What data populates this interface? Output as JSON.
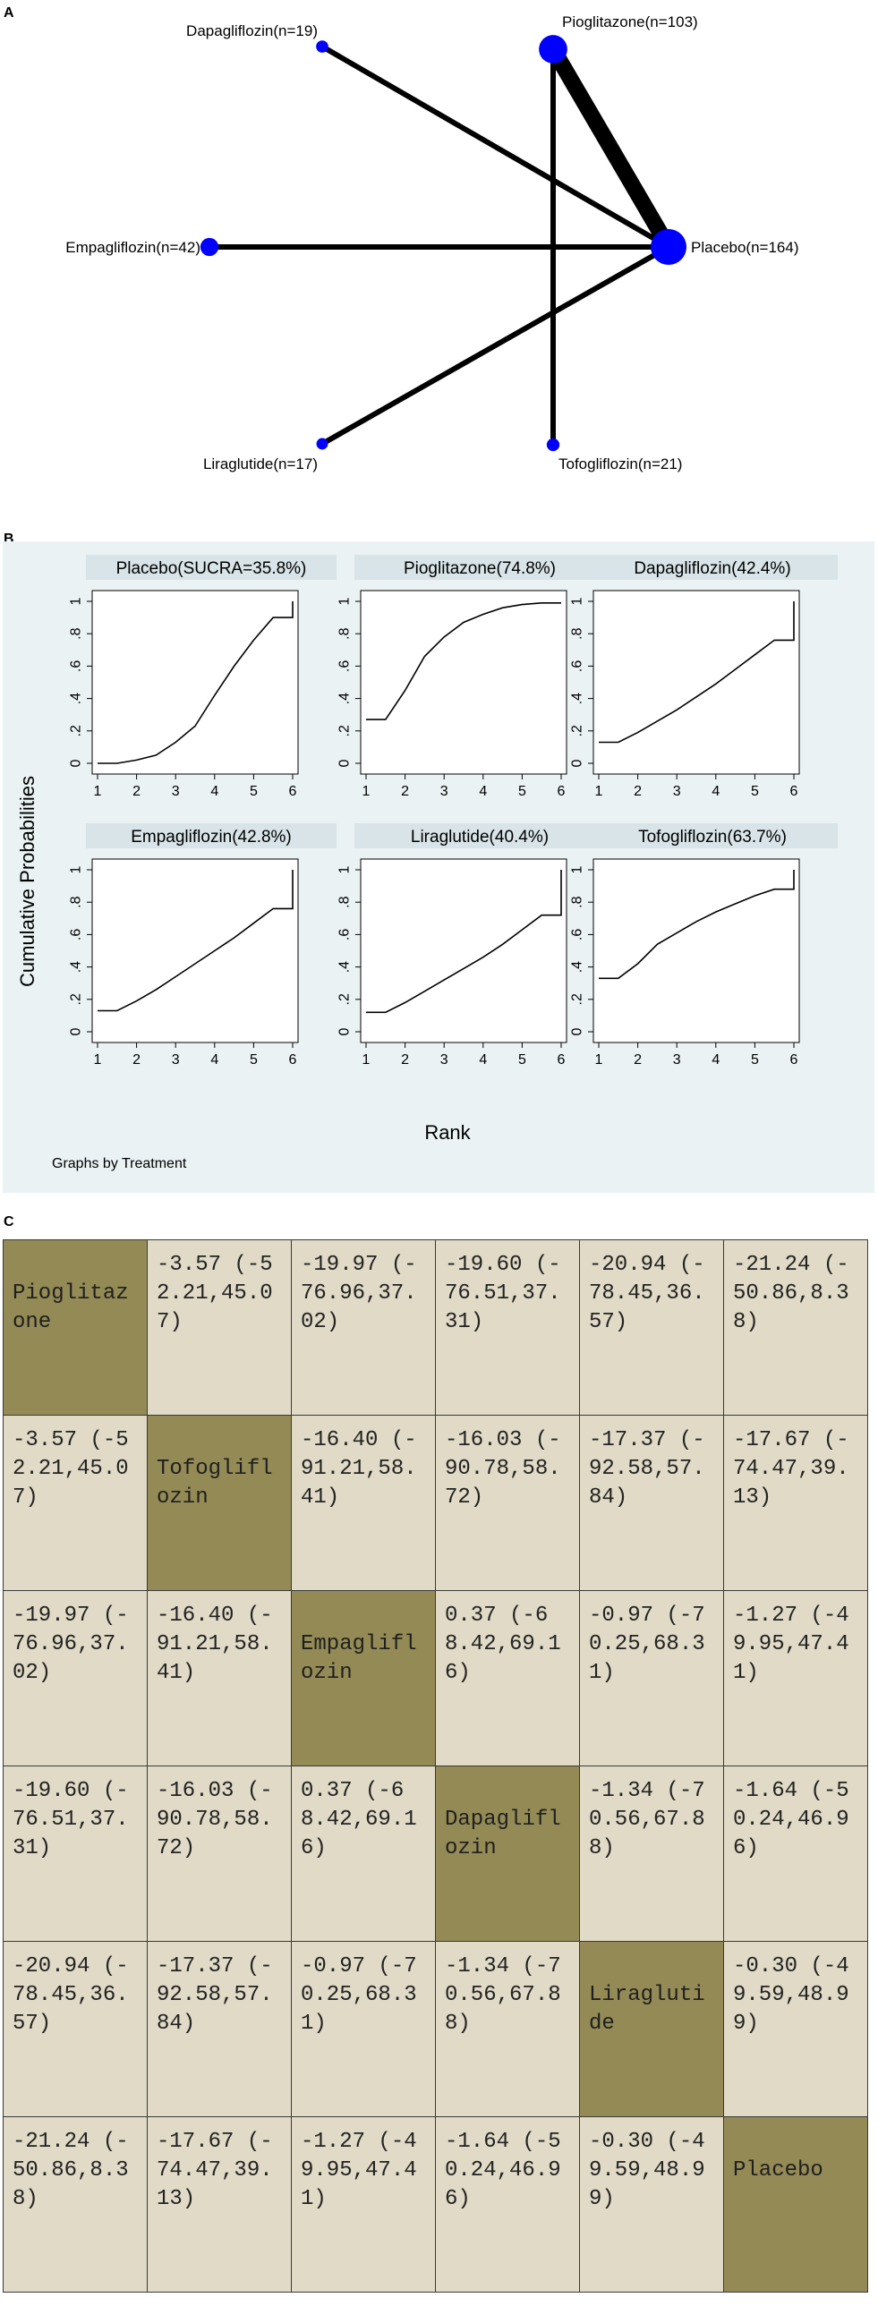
{
  "panel_labels": {
    "a": "A",
    "b": "B",
    "c": "C"
  },
  "chart_data": [
    {
      "type": "network",
      "panel": "A",
      "nodes": [
        {
          "name": "Dapagliflozin",
          "n": 19,
          "label": "Dapagliflozin(n=19)"
        },
        {
          "name": "Pioglitazone",
          "n": 103,
          "label": "Pioglitazone(n=103)"
        },
        {
          "name": "Empagliflozin",
          "n": 42,
          "label": "Empagliflozin(n=42)"
        },
        {
          "name": "Placebo",
          "n": 164,
          "label": "Placebo(n=164)"
        },
        {
          "name": "Liraglutide",
          "n": 17,
          "label": "Liraglutide(n=17)"
        },
        {
          "name": "Tofogliflozin",
          "n": 21,
          "label": "Tofogliflozin(n=21)"
        }
      ],
      "edges": [
        {
          "from": "Pioglitazone",
          "to": "Placebo",
          "weight": 3
        },
        {
          "from": "Dapagliflozin",
          "to": "Placebo",
          "weight": 1
        },
        {
          "from": "Empagliflozin",
          "to": "Placebo",
          "weight": 1
        },
        {
          "from": "Liraglutide",
          "to": "Placebo",
          "weight": 1
        },
        {
          "from": "Pioglitazone",
          "to": "Tofogliflozin",
          "weight": 1
        }
      ],
      "node_color": "#0000ff",
      "edge_color": "#000000"
    },
    {
      "type": "line",
      "panel": "B",
      "ylabel": "Cumulative Probabilities",
      "xlabel": "Rank",
      "note": "Graphs by Treatment",
      "xlim": [
        1,
        6
      ],
      "ylim": [
        0,
        1
      ],
      "xticks": [
        "1",
        "2",
        "3",
        "4",
        "5",
        "6"
      ],
      "yticks": [
        "0",
        ".2",
        ".4",
        ".6",
        ".8",
        "1"
      ],
      "background": "#eaf2f3",
      "title_bg": "#d8e4e8",
      "series": [
        {
          "name": "Placebo",
          "title": "Placebo(SUCRA=35.8%)",
          "x": [
            1,
            1.5,
            2,
            2.5,
            3,
            3.5,
            4,
            4.5,
            5,
            5.5,
            6,
            6
          ],
          "y": [
            0,
            0,
            0.02,
            0.05,
            0.13,
            0.23,
            0.42,
            0.6,
            0.76,
            0.9,
            0.9,
            1.0
          ]
        },
        {
          "name": "Pioglitazone",
          "title": "Pioglitazone(74.8%)",
          "x": [
            1,
            1.5,
            2,
            2.5,
            3,
            3.5,
            4,
            4.5,
            5,
            5.5,
            6
          ],
          "y": [
            0.27,
            0.27,
            0.45,
            0.66,
            0.78,
            0.87,
            0.92,
            0.96,
            0.98,
            0.99,
            0.99
          ]
        },
        {
          "name": "Dapagliflozin",
          "title": "Dapagliflozin(42.4%)",
          "x": [
            1,
            1.5,
            2,
            2.5,
            3,
            3.5,
            4,
            4.5,
            5,
            5.5,
            6,
            6
          ],
          "y": [
            0.13,
            0.13,
            0.19,
            0.26,
            0.33,
            0.41,
            0.49,
            0.58,
            0.67,
            0.76,
            0.76,
            1.0
          ]
        },
        {
          "name": "Empagliflozin",
          "title": "Empagliflozin(42.8%)",
          "x": [
            1,
            1.5,
            2,
            2.5,
            3,
            3.5,
            4,
            4.5,
            5,
            5.5,
            6,
            6
          ],
          "y": [
            0.13,
            0.13,
            0.19,
            0.26,
            0.34,
            0.42,
            0.5,
            0.58,
            0.67,
            0.76,
            0.76,
            1.0
          ]
        },
        {
          "name": "Liraglutide",
          "title": "Liraglutide(40.4%)",
          "x": [
            1,
            1.5,
            2,
            2.5,
            3,
            3.5,
            4,
            4.5,
            5,
            5.5,
            6,
            6
          ],
          "y": [
            0.12,
            0.12,
            0.18,
            0.25,
            0.32,
            0.39,
            0.46,
            0.54,
            0.63,
            0.72,
            0.72,
            1.0
          ]
        },
        {
          "name": "Tofogliflozin",
          "title": "Tofogliflozin(63.7%)",
          "x": [
            1,
            1.5,
            2,
            2.5,
            3,
            3.5,
            4,
            4.5,
            5,
            5.5,
            6,
            6
          ],
          "y": [
            0.33,
            0.33,
            0.42,
            0.54,
            0.61,
            0.68,
            0.74,
            0.79,
            0.84,
            0.88,
            0.88,
            1.0
          ]
        }
      ]
    },
    {
      "type": "table",
      "panel": "C",
      "diagonal_color": "#938a55",
      "cell_color": "#e0dac6",
      "rows": [
        [
          "Pioglitazone",
          "-3.57 (-52.21,45.07)",
          "-19.97 (-76.96,37.02)",
          "-19.60 (-76.51,37.31)",
          "-20.94 (-78.45,36.57)",
          "-21.24 (-50.86,8.38)"
        ],
        [
          "-3.57 (-52.21,45.07)",
          "Tofogliflozin",
          "-16.40 (-91.21,58.41)",
          "-16.03 (-90.78,58.72)",
          "-17.37 (-92.58,57.84)",
          "-17.67 (-74.47,39.13)"
        ],
        [
          "-19.97 (-76.96,37.02)",
          "-16.40 (-91.21,58.41)",
          "Empagliflozin",
          "0.37 (-68.42,69.16)",
          "-0.97 (-70.25,68.31)",
          "-1.27 (-49.95,47.41)"
        ],
        [
          "-19.60 (-76.51,37.31)",
          "-16.03 (-90.78,58.72)",
          "0.37 (-68.42,69.16)",
          "Dapagliflozin",
          "-1.34 (-70.56,67.88)",
          "-1.64 (-50.24,46.96)"
        ],
        [
          "-20.94 (-78.45,36.57)",
          "-17.37 (-92.58,57.84)",
          "-0.97 (-70.25,68.31)",
          "-1.34 (-70.56,67.88)",
          "Liraglutide",
          "-0.30 (-49.59,48.99)"
        ],
        [
          "-21.24 (-50.86,8.38)",
          "-17.67 (-74.47,39.13)",
          "-1.27 (-49.95,47.41)",
          "-1.64 (-50.24,46.96)",
          "-0.30 (-49.59,48.99)",
          "Placebo"
        ]
      ]
    }
  ]
}
